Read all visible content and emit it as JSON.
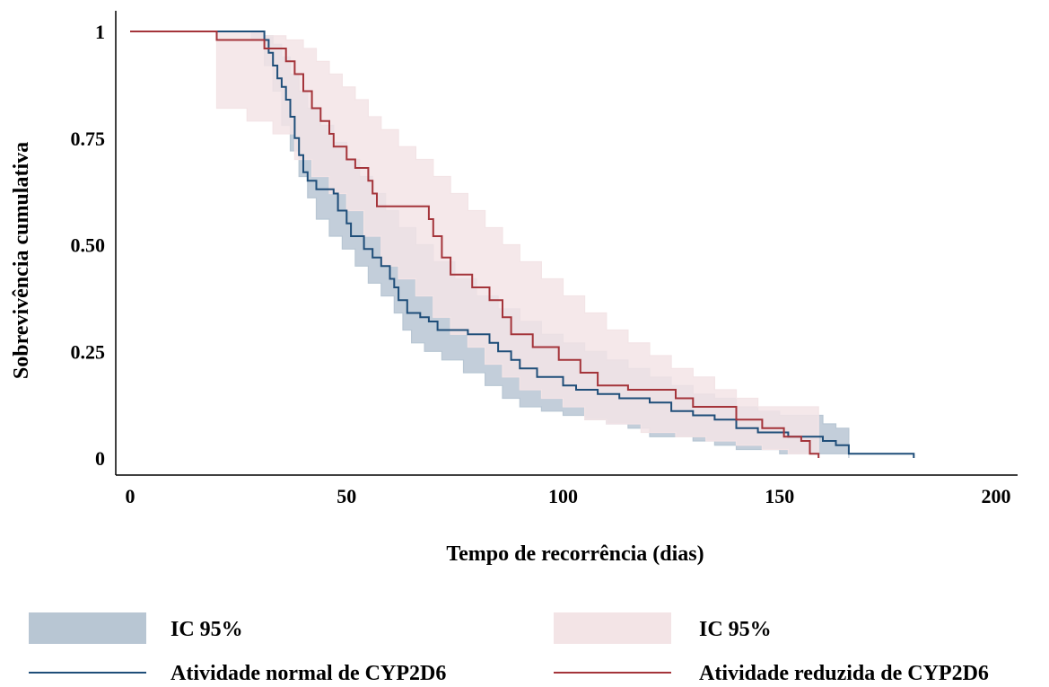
{
  "chart_data": {
    "type": "line",
    "subtype": "kaplan-meier step",
    "xlabel": "Tempo de recorrência (dias)",
    "ylabel": "Sobrevivência cumulativa",
    "xlim": [
      0,
      200
    ],
    "ylim": [
      0,
      1.05
    ],
    "xticks": [
      0,
      50,
      100,
      150,
      200
    ],
    "xtick_labels": [
      "0",
      "50",
      "100",
      "150",
      "200"
    ],
    "yticks": [
      0,
      0.25,
      0.5,
      0.75,
      1
    ],
    "ytick_labels": [
      "0",
      "0.25",
      "0.50",
      "0.75",
      "1"
    ],
    "grid": false,
    "legend_position": "bottom",
    "legend": [
      {
        "label": "IC 95%",
        "kind": "band",
        "series": "normal"
      },
      {
        "label": "IC 95%",
        "kind": "band",
        "series": "reduzida"
      },
      {
        "label": "Atividade normal de CYP2D6",
        "kind": "line",
        "series": "normal"
      },
      {
        "label": "Atividade reduzida de CYP2D6",
        "kind": "line",
        "series": "reduzida"
      }
    ],
    "series": [
      {
        "id": "normal",
        "name": "Atividade normal de CYP2D6",
        "line_color": "#1f4e79",
        "band_color": "#b8c6d3",
        "points": [
          [
            0,
            1
          ],
          [
            28,
            1
          ],
          [
            31,
            0.98
          ],
          [
            32,
            0.95
          ],
          [
            33,
            0.92
          ],
          [
            34,
            0.89
          ],
          [
            35,
            0.87
          ],
          [
            36,
            0.84
          ],
          [
            37,
            0.8
          ],
          [
            38,
            0.75
          ],
          [
            39,
            0.71
          ],
          [
            40,
            0.67
          ],
          [
            41,
            0.65
          ],
          [
            43,
            0.63
          ],
          [
            47,
            0.62
          ],
          [
            48,
            0.58
          ],
          [
            50,
            0.55
          ],
          [
            51,
            0.52
          ],
          [
            54,
            0.49
          ],
          [
            56,
            0.47
          ],
          [
            58,
            0.45
          ],
          [
            60,
            0.42
          ],
          [
            61,
            0.4
          ],
          [
            62,
            0.37
          ],
          [
            64,
            0.34
          ],
          [
            67,
            0.33
          ],
          [
            69,
            0.32
          ],
          [
            71,
            0.3
          ],
          [
            78,
            0.29
          ],
          [
            83,
            0.27
          ],
          [
            85,
            0.25
          ],
          [
            88,
            0.23
          ],
          [
            90,
            0.21
          ],
          [
            94,
            0.19
          ],
          [
            100,
            0.17
          ],
          [
            103,
            0.16
          ],
          [
            108,
            0.15
          ],
          [
            113,
            0.14
          ],
          [
            120,
            0.13
          ],
          [
            125,
            0.11
          ],
          [
            130,
            0.1
          ],
          [
            135,
            0.09
          ],
          [
            140,
            0.07
          ],
          [
            145,
            0.06
          ],
          [
            152,
            0.05
          ],
          [
            160,
            0.04
          ],
          [
            163,
            0.03
          ],
          [
            166,
            0.01
          ],
          [
            181,
            0.01
          ],
          [
            181,
            0
          ]
        ],
        "ci_upper": [
          [
            0,
            1
          ],
          [
            28,
            1
          ],
          [
            31,
            0.99
          ],
          [
            33,
            0.97
          ],
          [
            35,
            0.94
          ],
          [
            37,
            0.9
          ],
          [
            39,
            0.86
          ],
          [
            41,
            0.82
          ],
          [
            44,
            0.78
          ],
          [
            47,
            0.74
          ],
          [
            50,
            0.7
          ],
          [
            53,
            0.66
          ],
          [
            56,
            0.62
          ],
          [
            59,
            0.58
          ],
          [
            62,
            0.54
          ],
          [
            66,
            0.5
          ],
          [
            70,
            0.46
          ],
          [
            75,
            0.42
          ],
          [
            80,
            0.38
          ],
          [
            85,
            0.35
          ],
          [
            90,
            0.32
          ],
          [
            95,
            0.29
          ],
          [
            100,
            0.27
          ],
          [
            105,
            0.25
          ],
          [
            110,
            0.23
          ],
          [
            115,
            0.21
          ],
          [
            120,
            0.19
          ],
          [
            125,
            0.17
          ],
          [
            130,
            0.15
          ],
          [
            135,
            0.14
          ],
          [
            140,
            0.12
          ],
          [
            145,
            0.11
          ],
          [
            150,
            0.1
          ],
          [
            157,
            0.1
          ],
          [
            160,
            0.08
          ],
          [
            163,
            0.07
          ],
          [
            166,
            0.06
          ]
        ],
        "ci_lower": [
          [
            0,
            1
          ],
          [
            28,
            0.98
          ],
          [
            31,
            0.92
          ],
          [
            33,
            0.86
          ],
          [
            35,
            0.78
          ],
          [
            37,
            0.72
          ],
          [
            39,
            0.66
          ],
          [
            41,
            0.61
          ],
          [
            43,
            0.56
          ],
          [
            46,
            0.52
          ],
          [
            49,
            0.49
          ],
          [
            52,
            0.45
          ],
          [
            55,
            0.41
          ],
          [
            58,
            0.38
          ],
          [
            61,
            0.34
          ],
          [
            63,
            0.3
          ],
          [
            65,
            0.27
          ],
          [
            68,
            0.25
          ],
          [
            72,
            0.23
          ],
          [
            77,
            0.2
          ],
          [
            82,
            0.17
          ],
          [
            86,
            0.14
          ],
          [
            90,
            0.12
          ],
          [
            95,
            0.11
          ],
          [
            100,
            0.1
          ],
          [
            105,
            0.09
          ],
          [
            110,
            0.08
          ],
          [
            115,
            0.07
          ],
          [
            120,
            0.05
          ],
          [
            130,
            0.04
          ],
          [
            135,
            0.03
          ],
          [
            140,
            0.02
          ],
          [
            150,
            0.01
          ],
          [
            160,
            0.01
          ],
          [
            166,
            0
          ]
        ]
      },
      {
        "id": "reduzida",
        "name": "Atividade reduzida de CYP2D6",
        "line_color": "#a4343a",
        "band_color": "#f3e4e6",
        "points": [
          [
            0,
            1
          ],
          [
            20,
            1
          ],
          [
            20,
            0.98
          ],
          [
            31,
            0.96
          ],
          [
            36,
            0.93
          ],
          [
            38,
            0.9
          ],
          [
            40,
            0.86
          ],
          [
            42,
            0.82
          ],
          [
            44,
            0.79
          ],
          [
            46,
            0.76
          ],
          [
            47,
            0.73
          ],
          [
            50,
            0.7
          ],
          [
            52,
            0.68
          ],
          [
            55,
            0.65
          ],
          [
            56,
            0.62
          ],
          [
            57,
            0.59
          ],
          [
            69,
            0.56
          ],
          [
            70,
            0.52
          ],
          [
            72,
            0.47
          ],
          [
            74,
            0.43
          ],
          [
            79,
            0.4
          ],
          [
            83,
            0.37
          ],
          [
            86,
            0.33
          ],
          [
            88,
            0.29
          ],
          [
            93,
            0.26
          ],
          [
            99,
            0.23
          ],
          [
            104,
            0.2
          ],
          [
            108,
            0.17
          ],
          [
            115,
            0.16
          ],
          [
            126,
            0.14
          ],
          [
            130,
            0.12
          ],
          [
            140,
            0.09
          ],
          [
            146,
            0.07
          ],
          [
            151,
            0.05
          ],
          [
            155,
            0.04
          ],
          [
            157,
            0.01
          ],
          [
            159,
            0.01
          ],
          [
            159,
            0
          ]
        ],
        "ci_upper": [
          [
            0,
            1
          ],
          [
            20,
            1
          ],
          [
            31,
            0.99
          ],
          [
            36,
            0.98
          ],
          [
            40,
            0.96
          ],
          [
            43,
            0.93
          ],
          [
            46,
            0.9
          ],
          [
            49,
            0.87
          ],
          [
            52,
            0.84
          ],
          [
            55,
            0.8
          ],
          [
            58,
            0.77
          ],
          [
            62,
            0.73
          ],
          [
            66,
            0.7
          ],
          [
            70,
            0.66
          ],
          [
            74,
            0.62
          ],
          [
            78,
            0.58
          ],
          [
            82,
            0.54
          ],
          [
            86,
            0.5
          ],
          [
            90,
            0.46
          ],
          [
            95,
            0.42
          ],
          [
            100,
            0.38
          ],
          [
            105,
            0.34
          ],
          [
            110,
            0.3
          ],
          [
            115,
            0.27
          ],
          [
            120,
            0.24
          ],
          [
            125,
            0.21
          ],
          [
            130,
            0.19
          ],
          [
            135,
            0.16
          ],
          [
            140,
            0.14
          ],
          [
            145,
            0.12
          ],
          [
            150,
            0.12
          ],
          [
            157,
            0.12
          ],
          [
            159,
            0.01
          ]
        ],
        "ci_lower": [
          [
            0,
            1
          ],
          [
            20,
            0.82
          ],
          [
            27,
            0.79
          ],
          [
            33,
            0.76
          ],
          [
            38,
            0.7
          ],
          [
            42,
            0.66
          ],
          [
            46,
            0.62
          ],
          [
            50,
            0.58
          ],
          [
            54,
            0.52
          ],
          [
            58,
            0.45
          ],
          [
            62,
            0.42
          ],
          [
            66,
            0.38
          ],
          [
            70,
            0.33
          ],
          [
            74,
            0.29
          ],
          [
            78,
            0.26
          ],
          [
            82,
            0.22
          ],
          [
            86,
            0.19
          ],
          [
            90,
            0.16
          ],
          [
            95,
            0.14
          ],
          [
            100,
            0.12
          ],
          [
            105,
            0.09
          ],
          [
            110,
            0.08
          ],
          [
            118,
            0.06
          ],
          [
            126,
            0.05
          ],
          [
            133,
            0.04
          ],
          [
            140,
            0.03
          ],
          [
            146,
            0.02
          ],
          [
            152,
            0.01
          ],
          [
            159,
            0
          ]
        ]
      }
    ]
  }
}
